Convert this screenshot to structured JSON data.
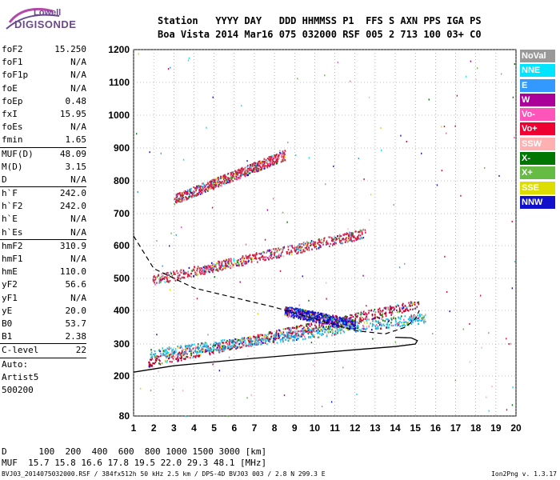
{
  "logo": {
    "line1": "Lowell",
    "line2": "DIGISONDE"
  },
  "header": {
    "line1": "Station   YYYY DAY   DDD HHMMSS P1  FFS S AXN PPS IGA PS",
    "line2": "Boa Vista 2014 Mar16 075 032000 RSF 005 2 713 100 03+ C0"
  },
  "params": [
    {
      "name": "foF2",
      "value": "15.250"
    },
    {
      "name": "foF1",
      "value": "N/A"
    },
    {
      "name": "foF1p",
      "value": "N/A"
    },
    {
      "name": "foE",
      "value": "N/A"
    },
    {
      "name": "foEp",
      "value": "0.48"
    },
    {
      "name": "fxI",
      "value": "15.95"
    },
    {
      "name": "foEs",
      "value": "N/A"
    },
    {
      "name": "fmin",
      "value": "1.65"
    },
    {
      "sep": true
    },
    {
      "name": "MUF(D)",
      "value": "48.09"
    },
    {
      "name": "M(D)",
      "value": "3.15"
    },
    {
      "name": "D",
      "value": "N/A"
    },
    {
      "sep": true
    },
    {
      "name": "h`F",
      "value": "242.0"
    },
    {
      "name": "h`F2",
      "value": "242.0"
    },
    {
      "name": "h`E",
      "value": "N/A"
    },
    {
      "name": "h`Es",
      "value": "N/A"
    },
    {
      "sep": true
    },
    {
      "name": "hmF2",
      "value": "310.9"
    },
    {
      "name": "hmF1",
      "value": "N/A"
    },
    {
      "name": "hmE",
      "value": "110.0"
    },
    {
      "name": "yF2",
      "value": "56.6"
    },
    {
      "name": "yF1",
      "value": "N/A"
    },
    {
      "name": "yE",
      "value": "20.0"
    },
    {
      "name": "B0",
      "value": "53.7"
    },
    {
      "name": "B1",
      "value": "2.38"
    },
    {
      "sep": true
    },
    {
      "name": "C-level",
      "value": "22"
    },
    {
      "sep": true
    },
    {
      "plain": "Auto:"
    },
    {
      "plain": "Artist5"
    },
    {
      "plain": "500200"
    }
  ],
  "legend": [
    {
      "label": "NoVal",
      "bg": "#999999",
      "fg": "#ffffff"
    },
    {
      "label": "NNE",
      "bg": "#00e5ff",
      "fg": "#ffffff"
    },
    {
      "label": "E",
      "bg": "#3399ff",
      "fg": "#ffffff"
    },
    {
      "label": "W",
      "bg": "#aa0099",
      "fg": "#ffffff"
    },
    {
      "label": "Vo-",
      "bg": "#ff55bb",
      "fg": "#ffffff"
    },
    {
      "label": "Vo+",
      "bg": "#ee0033",
      "fg": "#ffffff"
    },
    {
      "label": "SSW",
      "bg": "#ffb0b0",
      "fg": "#ffffff"
    },
    {
      "label": "X-",
      "bg": "#007700",
      "fg": "#ffffff"
    },
    {
      "label": "X+",
      "bg": "#66bb44",
      "fg": "#ffffff"
    },
    {
      "label": "SSE",
      "bg": "#dddd00",
      "fg": "#ffffff"
    },
    {
      "label": "NNW",
      "bg": "#1111cc",
      "fg": "#ffffff"
    }
  ],
  "footer": {
    "line1": "D      100  200  400  600  800 1000 1500 3000 [km]",
    "line2": "MUF  15.7 15.8 16.6 17.8 19.5 22.0 29.3 48.1 [MHz]",
    "line3": "BVJ03_2014075032000.RSF / 384fx512h 50 kHz 2.5 km / DPS-4D BVJ03 003 / 2.8 N 299.3 E",
    "version": "Ion2Png v. 1.3.17"
  },
  "chart_data": {
    "type": "scatter",
    "xlim": [
      1,
      20
    ],
    "ylim": [
      80,
      1200
    ],
    "x_ticks": [
      1,
      2,
      3,
      4,
      5,
      6,
      7,
      8,
      9,
      10,
      11,
      12,
      13,
      14,
      15,
      16,
      17,
      18,
      19,
      20
    ],
    "y_ticks": [
      80,
      200,
      300,
      400,
      500,
      600,
      700,
      800,
      900,
      1000,
      1100,
      1200
    ],
    "grid": "dotted",
    "traces": [
      {
        "name": "F2 o-trace",
        "color": "#c00030",
        "from": [
          1.7,
          245
        ],
        "to": [
          15.2,
          420
        ]
      },
      {
        "name": "F2 x-trace",
        "color": "#22bbdd",
        "from": [
          1.8,
          270
        ],
        "to": [
          15.5,
          380
        ]
      },
      {
        "name": "Second hop",
        "color": "#cc2244",
        "from": [
          1.9,
          495
        ],
        "to": [
          12.5,
          640
        ]
      },
      {
        "name": "Third hop",
        "color": "#cc2244",
        "from": [
          3.0,
          745
        ],
        "to": [
          8.5,
          880
        ]
      },
      {
        "name": "Spread F",
        "color": "#1111cc",
        "from": [
          8.5,
          400
        ],
        "to": [
          12.0,
          360
        ]
      }
    ],
    "profile_curve": [
      [
        1,
        212
      ],
      [
        3,
        232
      ],
      [
        6,
        250
      ],
      [
        9,
        266
      ],
      [
        12,
        282
      ],
      [
        14,
        292
      ],
      [
        15,
        300
      ],
      [
        15.1,
        310
      ],
      [
        14.8,
        318
      ],
      [
        14,
        320
      ]
    ],
    "virtual_height_curve": [
      [
        1,
        630
      ],
      [
        2,
        530
      ],
      [
        4,
        470
      ],
      [
        6,
        440
      ],
      [
        8,
        410
      ],
      [
        10,
        375
      ],
      [
        12,
        340
      ],
      [
        13.5,
        330
      ],
      [
        14.5,
        350
      ],
      [
        15,
        375
      ],
      [
        15.2,
        400
      ]
    ]
  }
}
